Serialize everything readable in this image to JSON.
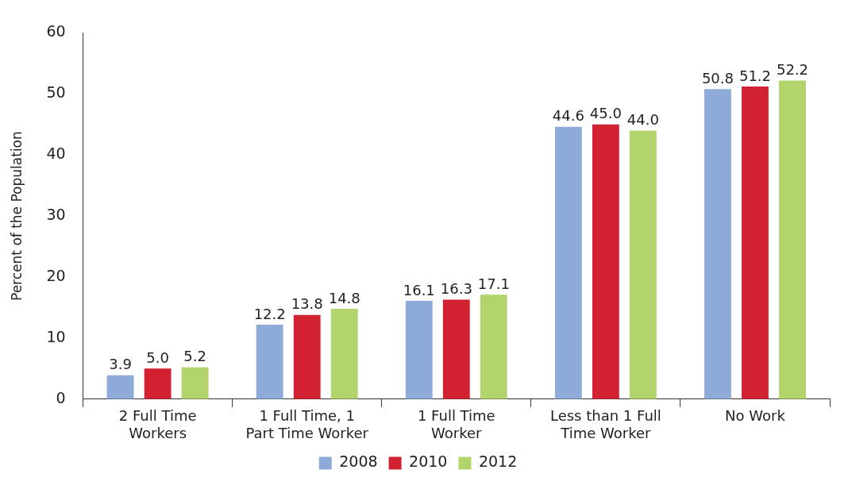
{
  "chart_data": {
    "type": "bar",
    "ylabel": "Percent of the Population",
    "categories": [
      "2 Full Time Workers",
      "1 Full Time, 1 Part Time Worker",
      "1 Full Time Worker",
      "Less than 1 Full Time Worker",
      "No Work"
    ],
    "series": [
      {
        "name": "2008",
        "color": "#8eaad8",
        "values": [
          3.9,
          12.2,
          16.1,
          44.6,
          50.8
        ],
        "value_labels": [
          "3.9",
          "12.2",
          "16.1",
          "44.6",
          "50.8"
        ]
      },
      {
        "name": "2010",
        "color": "#d22232",
        "values": [
          5.0,
          13.8,
          16.3,
          45.0,
          51.2
        ],
        "value_labels": [
          "5.0",
          "13.8",
          "16.3",
          "45.0",
          "51.2"
        ]
      },
      {
        "name": "2012",
        "color": "#b1d46b",
        "values": [
          5.2,
          14.8,
          17.1,
          44.0,
          52.2
        ],
        "value_labels": [
          "5.2",
          "14.8",
          "17.1",
          "44.0",
          "52.2"
        ]
      }
    ],
    "ylim": [
      0,
      60
    ],
    "yticks": [
      0,
      10,
      20,
      30,
      40,
      50,
      60
    ],
    "grid": false,
    "legend": "bottom"
  }
}
